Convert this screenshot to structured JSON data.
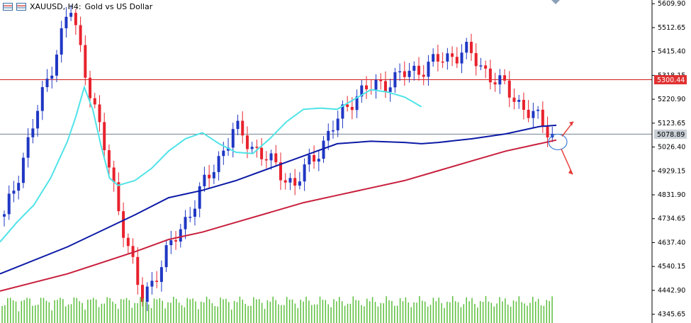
{
  "window": {
    "symbol": "XAUUSD, H4:",
    "description": "Gold vs US Dollar",
    "icons": [
      "chart-window-icon",
      "chart-window-icon"
    ]
  },
  "chart_data": {
    "type": "candlestick",
    "symbol": "XAUUSD",
    "timeframe": "H4",
    "title": "XAUUSD, H4:  Gold vs US Dollar",
    "y_ticks": [
      5609.9,
      5512.65,
      5415.4,
      5318.15,
      5220.9,
      5123.65,
      5026.4,
      4929.15,
      4831.9,
      4734.65,
      4637.4,
      4540.15,
      4442.9,
      4345.65
    ],
    "ylim": [
      4310,
      5625
    ],
    "grid": false,
    "horizontal_lines": [
      {
        "price": 5300.44,
        "label": "5300.44",
        "color": "#d01c1c",
        "tag_bg": "#e03131",
        "tag_fg": "#ffffff"
      },
      {
        "price": 5078.89,
        "label": "5078.89",
        "color": "#708090",
        "tag_bg": "#c8cfd6",
        "tag_fg": "#000000"
      }
    ],
    "candles_count": 116,
    "candle_colors": {
      "up": "#1f37c4",
      "down": "#e8222d"
    },
    "key_prices": [
      {
        "label": "start",
        "value": 4735
      },
      {
        "label": "peak",
        "value": 5598
      },
      {
        "label": "swing_low",
        "value": 4400
      },
      {
        "label": "recovery",
        "value": 5100
      },
      {
        "label": "dip",
        "value": 4870
      },
      {
        "label": "rally_high",
        "value": 5240
      },
      {
        "label": "second_peak",
        "value": 5420
      },
      {
        "label": "last",
        "value": 5078.89
      }
    ],
    "moving_averages": [
      {
        "color": "#4fe3e8",
        "points": [
          [
            0,
            4640
          ],
          [
            10,
            4720
          ],
          [
            20,
            4790
          ],
          [
            30,
            4900
          ],
          [
            40,
            5050
          ],
          [
            45,
            5150
          ],
          [
            50,
            5270
          ],
          [
            55,
            5180
          ],
          [
            60,
            5030
          ],
          [
            65,
            4900
          ],
          [
            70,
            4870
          ],
          [
            80,
            4890
          ],
          [
            90,
            4940
          ],
          [
            100,
            5010
          ],
          [
            110,
            5060
          ],
          [
            120,
            5085
          ],
          [
            130,
            5040
          ],
          [
            140,
            5005
          ],
          [
            150,
            5000
          ],
          [
            160,
            5060
          ],
          [
            170,
            5130
          ],
          [
            180,
            5180
          ],
          [
            190,
            5185
          ],
          [
            200,
            5180
          ],
          [
            210,
            5220
          ],
          [
            220,
            5260
          ],
          [
            230,
            5250
          ],
          [
            240,
            5230
          ],
          [
            250,
            5190
          ]
        ]
      },
      {
        "color": "#0c1aa6",
        "points": [
          [
            0,
            4510
          ],
          [
            40,
            4620
          ],
          [
            80,
            4750
          ],
          [
            100,
            4820
          ],
          [
            120,
            4850
          ],
          [
            140,
            4890
          ],
          [
            160,
            4940
          ],
          [
            180,
            4990
          ],
          [
            200,
            5040
          ],
          [
            220,
            5050
          ],
          [
            240,
            5045
          ],
          [
            250,
            5040
          ],
          [
            260,
            5045
          ],
          [
            280,
            5060
          ],
          [
            300,
            5080
          ],
          [
            320,
            5110
          ],
          [
            330,
            5115
          ]
        ]
      },
      {
        "color": "#c81f3c",
        "points": [
          [
            0,
            4440
          ],
          [
            40,
            4510
          ],
          [
            80,
            4600
          ],
          [
            100,
            4650
          ],
          [
            120,
            4680
          ],
          [
            140,
            4720
          ],
          [
            160,
            4760
          ],
          [
            180,
            4800
          ],
          [
            200,
            4830
          ],
          [
            220,
            4860
          ],
          [
            240,
            4890
          ],
          [
            260,
            4930
          ],
          [
            280,
            4970
          ],
          [
            300,
            5010
          ],
          [
            320,
            5040
          ],
          [
            330,
            5055
          ]
        ]
      }
    ],
    "annotations": [
      {
        "type": "ellipse",
        "label": "",
        "color": "#3f7fd6"
      },
      {
        "type": "arrow-up-right",
        "color": "#e53935"
      },
      {
        "type": "arrow-down-right",
        "color": "#e53935"
      }
    ],
    "volume_histogram_color": "#5bbf3c"
  }
}
